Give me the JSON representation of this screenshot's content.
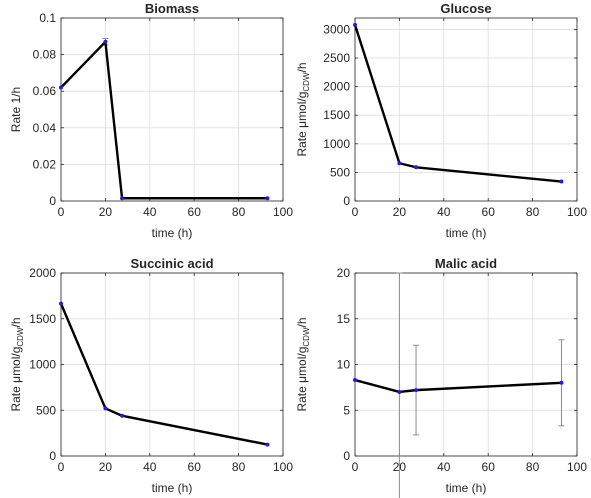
{
  "chart_data": [
    {
      "type": "line",
      "title": "Biomass",
      "xlabel": "time (h)",
      "ylabel": "Rate 1/h",
      "xlim": [
        0,
        100
      ],
      "ylim": [
        0,
        0.1
      ],
      "xticks": [
        0,
        20,
        40,
        60,
        80,
        100
      ],
      "xtick_labels": [
        "0",
        "20",
        "40",
        "60",
        "80",
        "100"
      ],
      "yticks": [
        0,
        0.02,
        0.04,
        0.06,
        0.08,
        0.1
      ],
      "ytick_labels": [
        "0",
        "0.02",
        "0.04",
        "0.06",
        "0.08",
        "0.1"
      ],
      "grid": true,
      "series": [
        {
          "x": [
            0,
            20,
            27.5,
            93
          ],
          "y": [
            0.062,
            0.087,
            0.0015,
            0.0015
          ],
          "err": [
            0,
            0.0018,
            0,
            0
          ]
        }
      ]
    },
    {
      "type": "line",
      "title": "Glucose",
      "xlabel": "time (h)",
      "ylabel": "Rate μmol/g_CDW/h",
      "xlim": [
        0,
        100
      ],
      "ylim": [
        0,
        3200
      ],
      "xticks": [
        0,
        20,
        40,
        60,
        80,
        100
      ],
      "xtick_labels": [
        "0",
        "20",
        "40",
        "60",
        "80",
        "100"
      ],
      "yticks": [
        0,
        500,
        1000,
        1500,
        2000,
        2500,
        3000
      ],
      "ytick_labels": [
        "0",
        "500",
        "1000",
        "1500",
        "2000",
        "2500",
        "3000"
      ],
      "grid": true,
      "series": [
        {
          "x": [
            0,
            20,
            27.5,
            93
          ],
          "y": [
            3080,
            660,
            590,
            340
          ],
          "err": [
            0,
            0,
            0,
            0
          ]
        }
      ]
    },
    {
      "type": "line",
      "title": "Succinic acid",
      "xlabel": "time (h)",
      "ylabel": "Rate μmol/g_CDW/h",
      "xlim": [
        0,
        100
      ],
      "ylim": [
        0,
        2000
      ],
      "xticks": [
        0,
        20,
        40,
        60,
        80,
        100
      ],
      "xtick_labels": [
        "0",
        "20",
        "40",
        "60",
        "80",
        "100"
      ],
      "yticks": [
        0,
        500,
        1000,
        1500,
        2000
      ],
      "ytick_labels": [
        "0",
        "500",
        "1000",
        "1500",
        "2000"
      ],
      "grid": true,
      "series": [
        {
          "x": [
            0,
            20,
            27.5,
            93
          ],
          "y": [
            1665,
            520,
            440,
            125
          ],
          "err": [
            0,
            0,
            0,
            0
          ]
        }
      ]
    },
    {
      "type": "line",
      "title": "Malic acid",
      "xlabel": "time (h)",
      "ylabel": "Rate μmol/g_CDW/h",
      "xlim": [
        0,
        100
      ],
      "ylim": [
        0,
        20
      ],
      "xticks": [
        0,
        20,
        40,
        60,
        80,
        100
      ],
      "xtick_labels": [
        "0",
        "20",
        "40",
        "60",
        "80",
        "100"
      ],
      "yticks": [
        0,
        5,
        10,
        15,
        20
      ],
      "ytick_labels": [
        "0",
        "5",
        "10",
        "15",
        "20"
      ],
      "grid": true,
      "series": [
        {
          "x": [
            0,
            20,
            27.5,
            93
          ],
          "y": [
            8.3,
            7.0,
            7.2,
            8.0
          ],
          "err": [
            0,
            13,
            4.9,
            4.7
          ]
        }
      ]
    }
  ]
}
